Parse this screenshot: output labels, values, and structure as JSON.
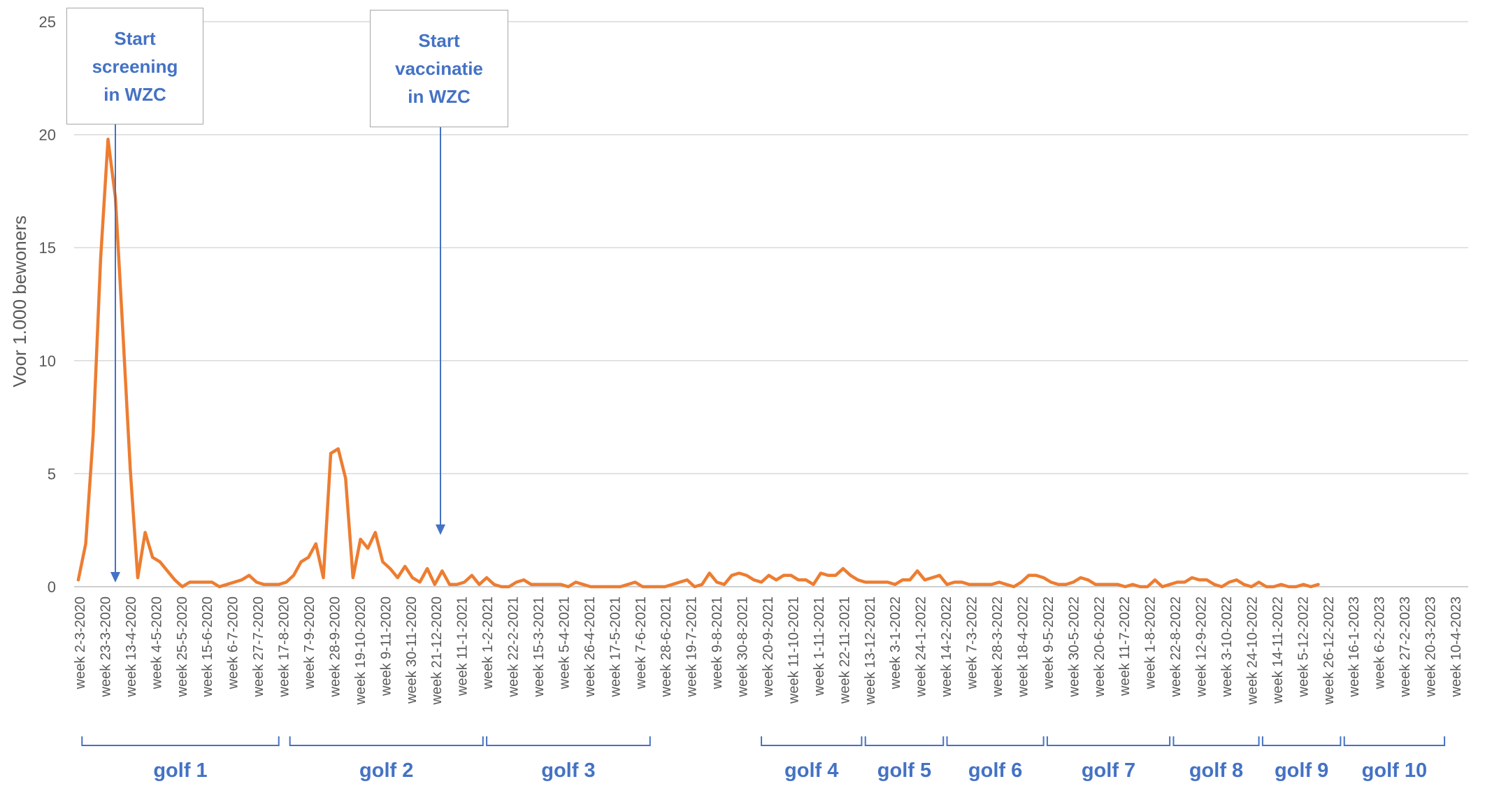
{
  "chart_data": {
    "type": "line",
    "title": "",
    "xlabel": "",
    "ylabel": "Voor 1.000 bewoners",
    "ylim": [
      0,
      25
    ],
    "yticks": [
      0,
      5,
      10,
      15,
      20,
      25
    ],
    "grid": true,
    "line_color": "#ed7d31",
    "annotation_color": "#4472c4",
    "x_tick_labels": [
      "week 2-3-2020",
      "week 23-3-2020",
      "week 13-4-2020",
      "week 4-5-2020",
      "week 25-5-2020",
      "week 15-6-2020",
      "week 6-7-2020",
      "week 27-7-2020",
      "week 17-8-2020",
      "week 7-9-2020",
      "week 28-9-2020",
      "week 19-10-2020",
      "week 9-11-2020",
      "week 30-11-2020",
      "week 21-12-2020",
      "week 11-1-2021",
      "week 1-2-2021",
      "week 22-2-2021",
      "week 15-3-2021",
      "week 5-4-2021",
      "week 26-4-2021",
      "week 17-5-2021",
      "week 7-6-2021",
      "week 28-6-2021",
      "week 19-7-2021",
      "week 9-8-2021",
      "week 30-8-2021",
      "week 20-9-2021",
      "week 11-10-2021",
      "week 1-11-2021",
      "week 22-11-2021",
      "week 13-12-2021",
      "week 3-1-2022",
      "week 24-1-2022",
      "week 14-2-2022",
      "week 7-3-2022",
      "week 28-3-2022",
      "week 18-4-2022",
      "week 9-5-2022",
      "week 30-5-2022",
      "week 20-6-2022",
      "week 11-7-2022",
      "week 1-8-2022",
      "week 22-8-2022",
      "week 12-9-2022",
      "week 3-10-2022",
      "week 24-10-2022",
      "week 14-11-2022",
      "week 5-12-2022",
      "week 26-12-2022",
      "week 16-1-2023",
      "week 6-2-2023",
      "week 27-2-2023",
      "week 20-3-2023",
      "week 10-4-2023"
    ],
    "series": [
      {
        "values": [
          0.3,
          1.9,
          6.7,
          14.5,
          19.8,
          17.2,
          11.3,
          5.2,
          0.4,
          2.4,
          1.3,
          1.1,
          0.7,
          0.3,
          0.0,
          0.2,
          0.2,
          0.2,
          0.2,
          0.0,
          0.1,
          0.2,
          0.3,
          0.5,
          0.2,
          0.1,
          0.1,
          0.1,
          0.2,
          0.5,
          1.1,
          1.3,
          1.9,
          0.4,
          5.9,
          6.1,
          4.8,
          0.4,
          2.1,
          1.7,
          2.4,
          1.1,
          0.8,
          0.4,
          0.9,
          0.4,
          0.2,
          0.8,
          0.1,
          0.7,
          0.1,
          0.1,
          0.2,
          0.5,
          0.1,
          0.4,
          0.1,
          0.0,
          0.0,
          0.2,
          0.3,
          0.1,
          0.1,
          0.1,
          0.1,
          0.1,
          0.0,
          0.2,
          0.1,
          0.0,
          0.0,
          0.0,
          0.0,
          0.0,
          0.1,
          0.2,
          0.0,
          0.0,
          0.0,
          0.0,
          0.1,
          0.2,
          0.3,
          0.0,
          0.1,
          0.6,
          0.2,
          0.1,
          0.5,
          0.6,
          0.5,
          0.3,
          0.2,
          0.5,
          0.3,
          0.5,
          0.5,
          0.3,
          0.3,
          0.1,
          0.6,
          0.5,
          0.5,
          0.8,
          0.5,
          0.3,
          0.2,
          0.2,
          0.2,
          0.2,
          0.1,
          0.3,
          0.3,
          0.7,
          0.3,
          0.4,
          0.5,
          0.1,
          0.2,
          0.2,
          0.1,
          0.1,
          0.1,
          0.1,
          0.2,
          0.1,
          0.0,
          0.2,
          0.5,
          0.5,
          0.4,
          0.2,
          0.1,
          0.1,
          0.2,
          0.4,
          0.3,
          0.1,
          0.1,
          0.1,
          0.1,
          0.0,
          0.1,
          0.0,
          0.0,
          0.3,
          0.0,
          0.1,
          0.2,
          0.2,
          0.4,
          0.3,
          0.3,
          0.1,
          0.0,
          0.2,
          0.3,
          0.1,
          0.0,
          0.2,
          0.0,
          0.0,
          0.1,
          0.0,
          0.0,
          0.1,
          0.0,
          0.1
        ]
      }
    ],
    "annotations": [
      {
        "lines": [
          "Start",
          "screening",
          "in WZC"
        ],
        "at_week": "week 30-3-2020"
      },
      {
        "lines": [
          "Start",
          "vaccinatie",
          "in WZC"
        ],
        "at_week": "week 28-12-2020"
      }
    ],
    "waves": [
      {
        "label": "golf 1",
        "start_week": 0.5,
        "end_week": 27
      },
      {
        "label": "golf 2",
        "start_week": 28.5,
        "end_week": 54.5
      },
      {
        "label": "golf 3",
        "start_week": 55,
        "end_week": 77
      },
      {
        "label": "golf 4",
        "start_week": 92,
        "end_week": 105.5
      },
      {
        "label": "golf 5",
        "start_week": 106,
        "end_week": 116.5
      },
      {
        "label": "golf 6",
        "start_week": 117,
        "end_week": 130
      },
      {
        "label": "golf 7",
        "start_week": 130.5,
        "end_week": 147
      },
      {
        "label": "golf 8",
        "start_week": 147.5,
        "end_week": 159
      },
      {
        "label": "golf 9",
        "start_week": 159.5,
        "end_week": 170
      },
      {
        "label": "golf 10",
        "start_week": 170.5,
        "end_week": 184
      }
    ]
  }
}
